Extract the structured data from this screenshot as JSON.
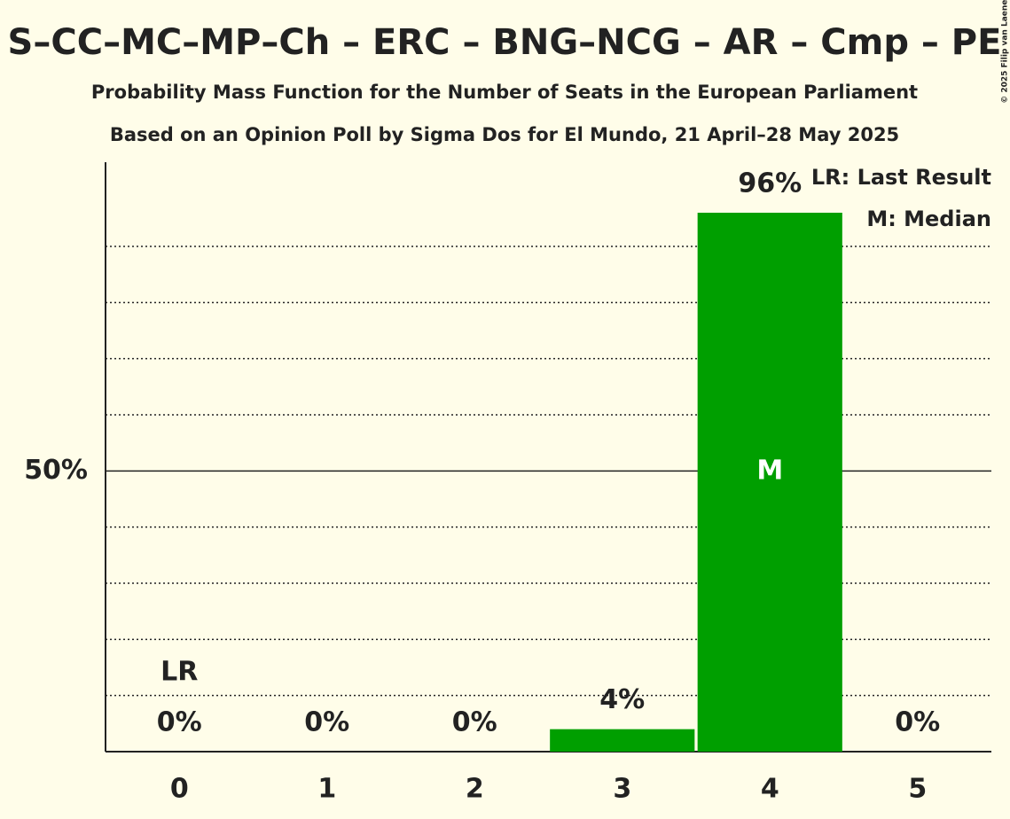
{
  "chart_data": {
    "type": "bar",
    "title": "S–CC–MC–MP–Ch – ERC – BNG–NCG – AR – Cmp – PE",
    "subtitle": "Probability Mass Function for the Number of Seats in the European Parliament",
    "subtitle2": "Based on an Opinion Poll by Sigma Dos for El Mundo, 21 April–28 May 2025",
    "copyright": "© 2025 Filip van Laenen",
    "categories": [
      "0",
      "1",
      "2",
      "3",
      "4",
      "5"
    ],
    "values": [
      0,
      0,
      0,
      4,
      96,
      0
    ],
    "value_labels": [
      "0%",
      "0%",
      "0%",
      "4%",
      "96%",
      "0%"
    ],
    "color": "#009f00",
    "ylim": [
      0,
      105
    ],
    "yticks": [
      {
        "value": 50,
        "label": "50%"
      }
    ],
    "minor_yticks": [
      10,
      20,
      30,
      40,
      60,
      70,
      80,
      90
    ],
    "last_result": 0,
    "last_result_label": "LR",
    "median": 4,
    "median_label": "M",
    "legend": [
      "LR: Last Result",
      "M: Median"
    ]
  }
}
